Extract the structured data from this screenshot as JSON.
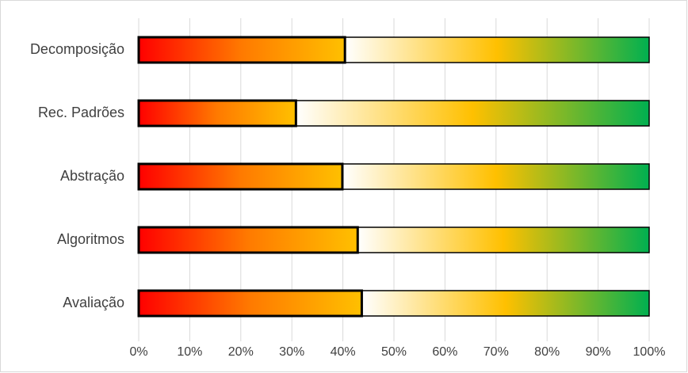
{
  "chart_data": {
    "type": "stacked-bar-horizontal",
    "categories": [
      "Decomposição",
      "Rec. Padrões",
      "Abstração",
      "Algoritmos",
      "Avaliação"
    ],
    "series": [
      {
        "colors": [
          "#ff0000",
          "#ff7a00",
          "#ffc000"
        ],
        "border": "#000000",
        "values": [
          40.4,
          30.8,
          39.9,
          42.9,
          43.7
        ]
      },
      {
        "colors": [
          "#ffffff",
          "#ffc000",
          "#00b050"
        ],
        "border": "#000000",
        "values": [
          59.6,
          69.2,
          60.1,
          57.1,
          56.3
        ]
      }
    ],
    "xlim": [
      0,
      100
    ],
    "xticks": [
      {
        "value": 0,
        "label": "0%"
      },
      {
        "value": 10,
        "label": "10%"
      },
      {
        "value": 20,
        "label": "20%"
      },
      {
        "value": 30,
        "label": "30%"
      },
      {
        "value": 40,
        "label": "40%"
      },
      {
        "value": 50,
        "label": "50%"
      },
      {
        "value": 60,
        "label": "60%"
      },
      {
        "value": 70,
        "label": "70%"
      },
      {
        "value": 80,
        "label": "80%"
      },
      {
        "value": 90,
        "label": "90%"
      },
      {
        "value": 100,
        "label": "100%"
      }
    ],
    "grid": true
  }
}
